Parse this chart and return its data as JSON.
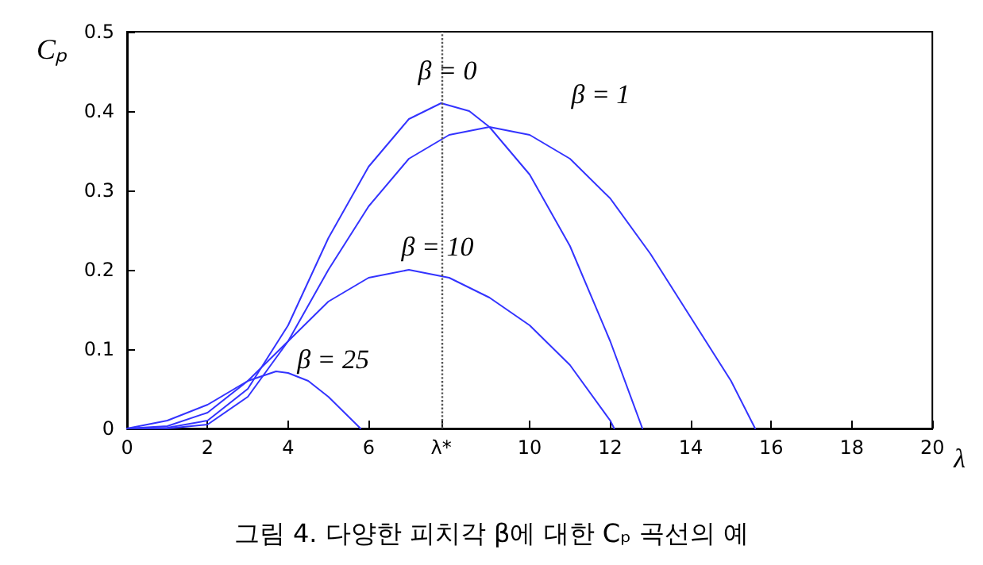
{
  "chart_data": {
    "type": "line",
    "xlabel": "λ",
    "ylabel": "Cₚ",
    "xlim": [
      0,
      20
    ],
    "xticks": [
      0,
      2,
      4,
      6,
      {
        "value": 7.8,
        "label": "λ*"
      },
      10,
      12,
      14,
      16,
      18,
      20
    ],
    "ylim": [
      0,
      0.5
    ],
    "yticks": [
      0,
      0.1,
      0.2,
      0.3,
      0.4,
      0.5
    ],
    "grid": false,
    "legend": false,
    "marker": "none",
    "line_style": "solid",
    "series": [
      {
        "name": "β = 0",
        "color": "#3333ff",
        "x": [
          0,
          1,
          2,
          3,
          4,
          5,
          6,
          7,
          7.8,
          8.5,
          9,
          10,
          11,
          12,
          12.8
        ],
        "values": [
          0,
          0.001,
          0.01,
          0.05,
          0.13,
          0.24,
          0.33,
          0.39,
          0.41,
          0.4,
          0.38,
          0.32,
          0.23,
          0.11,
          0
        ]
      },
      {
        "name": "β = 1",
        "color": "#3333ff",
        "x": [
          0,
          1,
          2,
          3,
          4,
          5,
          6,
          7,
          8,
          9,
          10,
          11,
          12,
          13,
          14,
          15,
          15.6
        ],
        "values": [
          0,
          0,
          0.005,
          0.04,
          0.11,
          0.2,
          0.28,
          0.34,
          0.37,
          0.38,
          0.37,
          0.34,
          0.29,
          0.22,
          0.14,
          0.06,
          0
        ]
      },
      {
        "name": "β = 10",
        "color": "#3333ff",
        "x": [
          0,
          1,
          2,
          3,
          4,
          5,
          6,
          7,
          8,
          9,
          10,
          11,
          12,
          12.1
        ],
        "values": [
          0,
          0.003,
          0.02,
          0.06,
          0.11,
          0.16,
          0.19,
          0.2,
          0.19,
          0.165,
          0.13,
          0.08,
          0.01,
          0
        ]
      },
      {
        "name": "β = 25",
        "color": "#3333ff",
        "x": [
          0,
          1,
          2,
          3,
          3.7,
          4,
          4.5,
          5,
          5.5,
          5.8
        ],
        "values": [
          0,
          0.01,
          0.03,
          0.06,
          0.072,
          0.07,
          0.06,
          0.04,
          0.015,
          0
        ]
      }
    ],
    "ref_lines": [
      {
        "axis": "x",
        "value": 7.8,
        "color": "#555555",
        "line_style": "dotted"
      }
    ],
    "annotations": [
      "그림 4. 다양한 피치각 β에 대한 Cₚ 곡선의 예"
    ]
  }
}
